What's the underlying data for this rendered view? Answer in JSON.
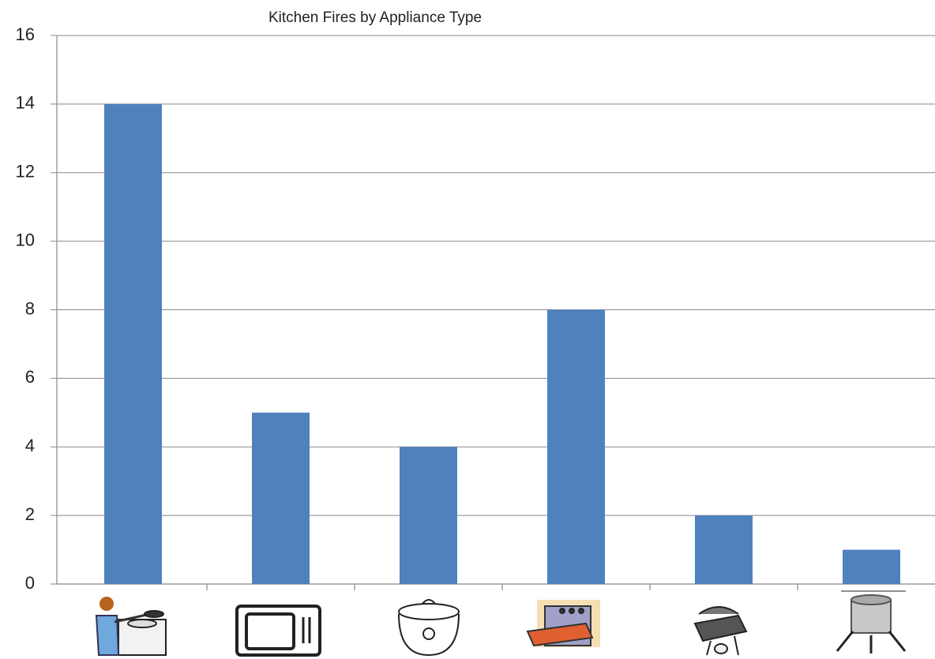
{
  "chart_data": {
    "type": "bar",
    "title": "Kitchen Fires by Appliance Type",
    "categories": [
      null,
      null,
      null,
      null,
      null,
      null
    ],
    "values": [
      14,
      5,
      4,
      8,
      2,
      1
    ],
    "color": "#4f81bd",
    "ylim": [
      0,
      16
    ],
    "yticks": [
      0,
      2,
      4,
      6,
      8,
      10,
      12,
      14,
      16
    ],
    "grid": true
  }
}
